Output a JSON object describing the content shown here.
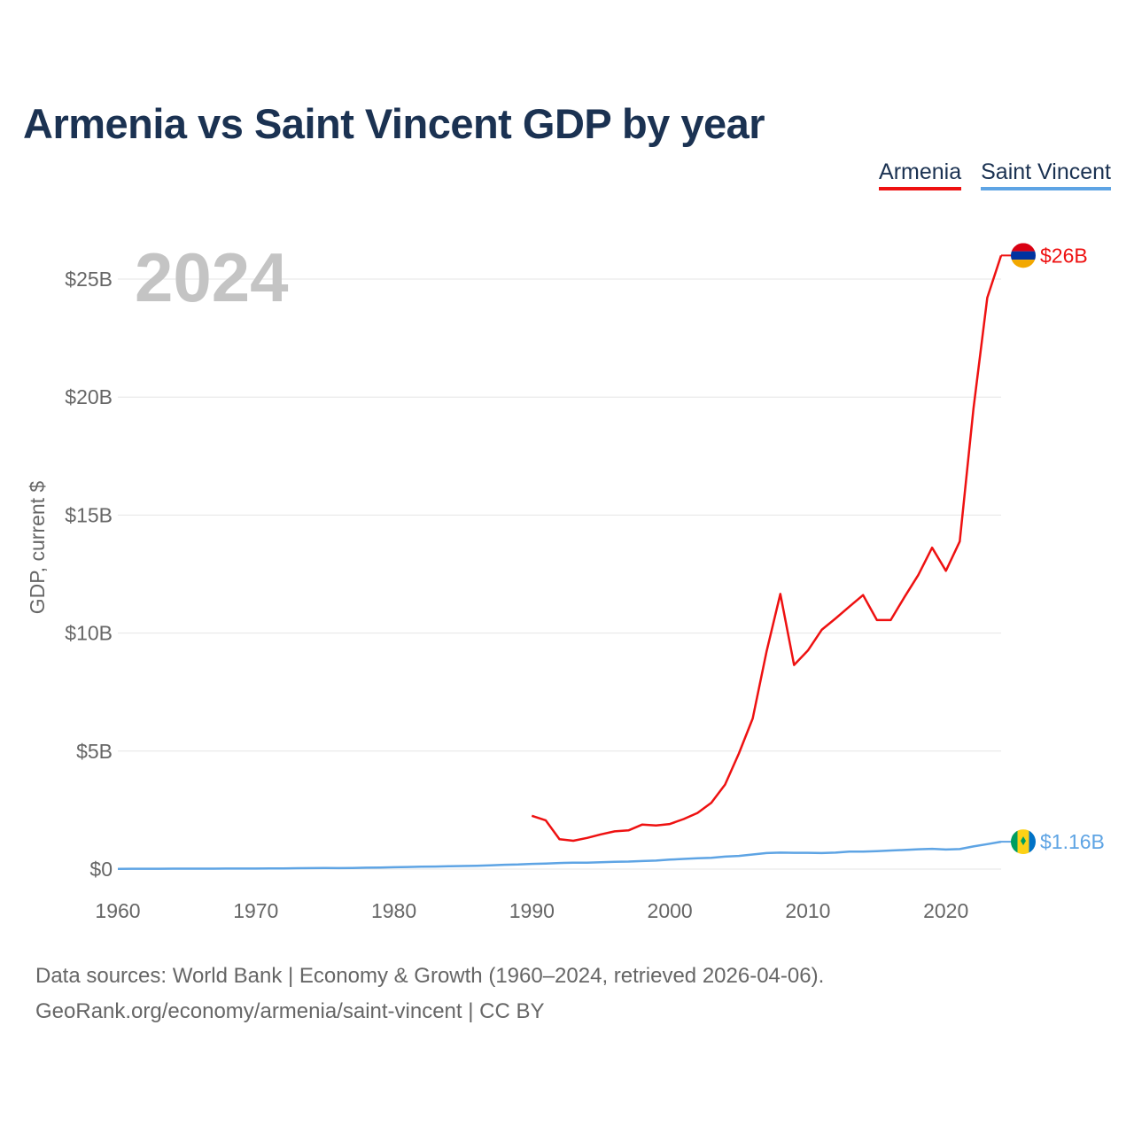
{
  "title": "Armenia vs Saint Vincent GDP by year",
  "legend": [
    {
      "name": "Armenia",
      "color": "#ee1111"
    },
    {
      "name": "Saint Vincent",
      "color": "#5ea4e4"
    }
  ],
  "year_label": "2024",
  "footer": {
    "line1": "Data sources: World Bank | Economy & Growth (1960–2024, retrieved 2026-04-06).",
    "line2": "GeoRank.org/economy/armenia/saint-vincent | CC BY"
  },
  "chart_data": {
    "type": "line",
    "title": "Armenia vs Saint Vincent GDP by year",
    "xlabel": "",
    "ylabel": "GDP, current $",
    "xlim": [
      1960,
      2024
    ],
    "ylim": [
      0,
      25
    ],
    "y_unit": "billions USD",
    "y_ticks": [
      0,
      5,
      10,
      15,
      20,
      25
    ],
    "y_tick_labels": [
      "$0",
      "$5B",
      "$10B",
      "$15B",
      "$20B",
      "$25B"
    ],
    "x_ticks": [
      1960,
      1970,
      1980,
      1990,
      2000,
      2010,
      2020
    ],
    "x_tick_labels": [
      "1960",
      "1970",
      "1980",
      "1990",
      "2000",
      "2010",
      "2020"
    ],
    "series": [
      {
        "name": "Armenia",
        "color": "#ee1111",
        "end_label": "$26B",
        "x": [
          1990,
          1991,
          1992,
          1993,
          1994,
          1995,
          1996,
          1997,
          1998,
          1999,
          2000,
          2001,
          2002,
          2003,
          2004,
          2005,
          2006,
          2007,
          2008,
          2009,
          2010,
          2011,
          2012,
          2013,
          2014,
          2015,
          2016,
          2017,
          2018,
          2019,
          2020,
          2021,
          2022,
          2023,
          2024
        ],
        "values": [
          2.26,
          2.07,
          1.27,
          1.2,
          1.32,
          1.47,
          1.6,
          1.64,
          1.89,
          1.85,
          1.91,
          2.12,
          2.38,
          2.81,
          3.58,
          4.9,
          6.38,
          9.21,
          11.66,
          8.65,
          9.26,
          10.14,
          10.62,
          11.12,
          11.61,
          10.55,
          10.55,
          11.53,
          12.46,
          13.62,
          12.64,
          13.88,
          19.51,
          24.21,
          26.0
        ]
      },
      {
        "name": "Saint Vincent",
        "color": "#5ea4e4",
        "end_label": "$1.16B",
        "x": [
          1960,
          1961,
          1962,
          1963,
          1964,
          1965,
          1966,
          1967,
          1968,
          1969,
          1970,
          1971,
          1972,
          1973,
          1974,
          1975,
          1976,
          1977,
          1978,
          1979,
          1980,
          1981,
          1982,
          1983,
          1984,
          1985,
          1986,
          1987,
          1988,
          1989,
          1990,
          1991,
          1992,
          1993,
          1994,
          1995,
          1996,
          1997,
          1998,
          1999,
          2000,
          2001,
          2002,
          2003,
          2004,
          2005,
          2006,
          2007,
          2008,
          2009,
          2010,
          2011,
          2012,
          2013,
          2014,
          2015,
          2016,
          2017,
          2018,
          2019,
          2020,
          2021,
          2022,
          2023,
          2024
        ],
        "values": [
          0.013,
          0.014,
          0.015,
          0.016,
          0.017,
          0.018,
          0.019,
          0.02,
          0.021,
          0.022,
          0.023,
          0.026,
          0.031,
          0.036,
          0.041,
          0.044,
          0.04,
          0.05,
          0.06,
          0.069,
          0.08,
          0.091,
          0.1,
          0.109,
          0.12,
          0.131,
          0.144,
          0.162,
          0.184,
          0.197,
          0.22,
          0.238,
          0.26,
          0.27,
          0.27,
          0.29,
          0.31,
          0.32,
          0.34,
          0.36,
          0.4,
          0.43,
          0.46,
          0.48,
          0.53,
          0.56,
          0.62,
          0.68,
          0.7,
          0.69,
          0.69,
          0.68,
          0.7,
          0.74,
          0.74,
          0.76,
          0.79,
          0.81,
          0.84,
          0.86,
          0.83,
          0.85,
          0.96,
          1.06,
          1.16
        ]
      }
    ]
  }
}
